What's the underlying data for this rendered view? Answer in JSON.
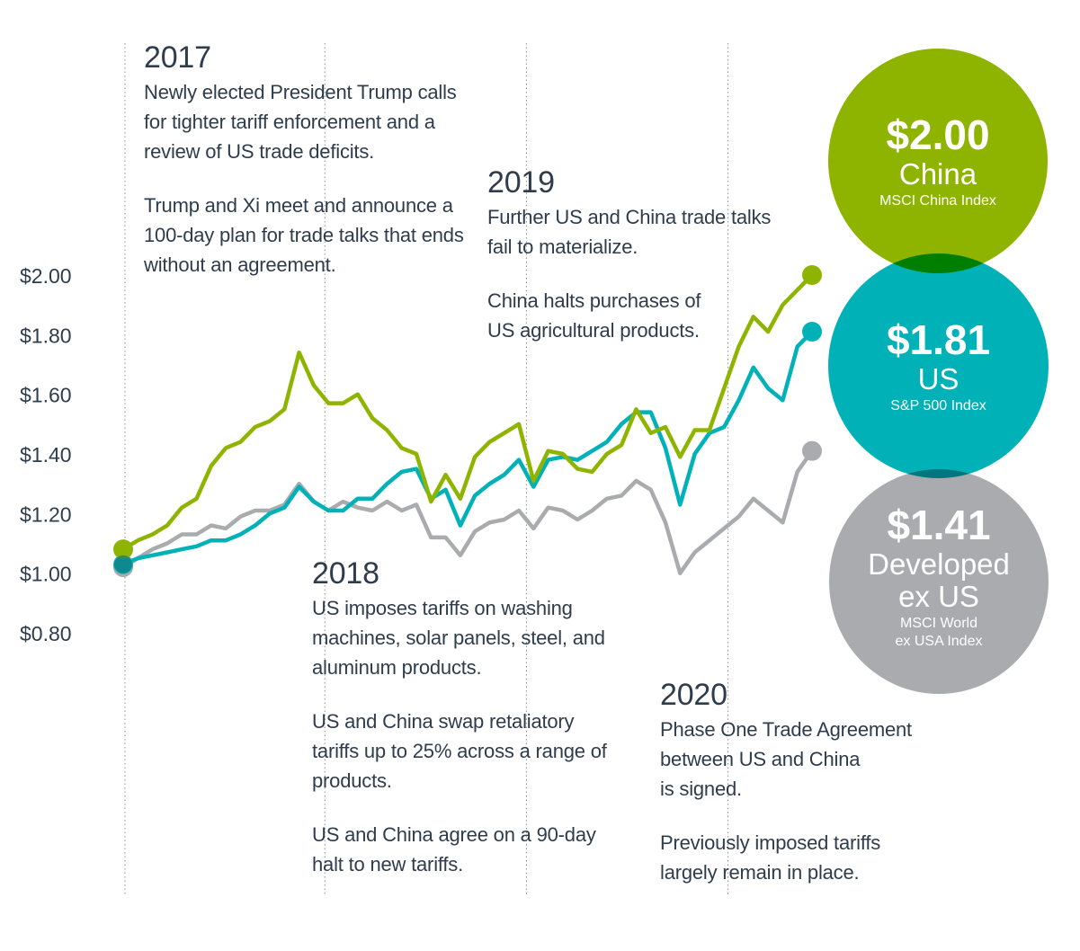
{
  "chart_data": {
    "type": "line",
    "ylim": [
      0.8,
      2.0
    ],
    "yticks": [
      "$2.00",
      "$1.80",
      "$1.60",
      "$1.40",
      "$1.20",
      "$1.00",
      "$0.80"
    ],
    "ytick_values": [
      2.0,
      1.8,
      1.6,
      1.4,
      1.2,
      1.0,
      0.8
    ],
    "x_start": "2017-01",
    "x_end": "2020-06",
    "period_markers": [
      "2017-01",
      "2018-01",
      "2019-01",
      "2020-01"
    ],
    "series": [
      {
        "name": "China",
        "color": "#8fb400",
        "values": [
          1.08,
          1.11,
          1.13,
          1.16,
          1.22,
          1.25,
          1.36,
          1.42,
          1.44,
          1.49,
          1.51,
          1.55,
          1.74,
          1.63,
          1.57,
          1.57,
          1.6,
          1.52,
          1.48,
          1.42,
          1.4,
          1.24,
          1.33,
          1.25,
          1.39,
          1.44,
          1.47,
          1.5,
          1.31,
          1.41,
          1.4,
          1.35,
          1.34,
          1.4,
          1.43,
          1.55,
          1.47,
          1.49,
          1.39,
          1.48,
          1.48,
          1.62,
          1.76,
          1.86,
          1.81,
          1.9,
          1.95,
          2.0
        ]
      },
      {
        "name": "US",
        "color": "#00b2b8",
        "values": [
          1.03,
          1.05,
          1.06,
          1.07,
          1.08,
          1.09,
          1.11,
          1.11,
          1.13,
          1.16,
          1.2,
          1.22,
          1.29,
          1.24,
          1.21,
          1.21,
          1.25,
          1.25,
          1.3,
          1.34,
          1.35,
          1.25,
          1.28,
          1.16,
          1.26,
          1.3,
          1.33,
          1.38,
          1.29,
          1.38,
          1.39,
          1.38,
          1.41,
          1.44,
          1.5,
          1.54,
          1.54,
          1.42,
          1.23,
          1.4,
          1.47,
          1.49,
          1.58,
          1.69,
          1.62,
          1.58,
          1.76,
          1.81
        ]
      },
      {
        "name": "Developed ex US",
        "color": "#a9abae",
        "values": [
          1.02,
          1.05,
          1.08,
          1.1,
          1.13,
          1.13,
          1.16,
          1.15,
          1.19,
          1.21,
          1.21,
          1.23,
          1.3,
          1.24,
          1.21,
          1.24,
          1.22,
          1.21,
          1.24,
          1.21,
          1.23,
          1.12,
          1.12,
          1.06,
          1.14,
          1.17,
          1.18,
          1.21,
          1.15,
          1.22,
          1.21,
          1.18,
          1.21,
          1.25,
          1.26,
          1.31,
          1.28,
          1.17,
          1.0,
          1.07,
          1.11,
          1.15,
          1.19,
          1.25,
          1.21,
          1.17,
          1.34,
          1.41
        ]
      }
    ]
  },
  "annotations": [
    {
      "year": "2017",
      "paragraphs": [
        [
          "Newly elected President Trump calls",
          "for tighter tariff enforcement and a",
          "review of US trade deficits."
        ],
        [
          "Trump and Xi meet and announce a",
          "100-day plan for trade talks that ends",
          "without an agreement."
        ]
      ]
    },
    {
      "year": "2018",
      "paragraphs": [
        [
          "US imposes tariffs on washing",
          "machines, solar panels, steel, and",
          "aluminum products."
        ],
        [
          "US and China swap retaliatory",
          "tariffs up to 25% across a range of",
          "products."
        ],
        [
          "US and China agree on a 90-day",
          "halt to new tariffs."
        ]
      ]
    },
    {
      "year": "2019",
      "paragraphs": [
        [
          "Further US and China trade talks",
          "fail to materialize."
        ],
        [
          "China halts purchases of",
          "US agricultural products."
        ]
      ]
    },
    {
      "year": "2020",
      "paragraphs": [
        [
          "Phase One Trade Agreement",
          "between US and China",
          "is signed."
        ],
        [
          "Previously imposed tariffs",
          "largely remain in place."
        ]
      ]
    }
  ],
  "bubbles": [
    {
      "value": "$2.00",
      "name": [
        "China"
      ],
      "index": [
        "MSCI China Index"
      ],
      "color": "#8fb400"
    },
    {
      "value": "$1.81",
      "name": [
        "US"
      ],
      "index": [
        "S&P 500 Index"
      ],
      "color": "#00b2b8"
    },
    {
      "value": "$1.41",
      "name": [
        "Developed",
        "ex US"
      ],
      "index": [
        "MSCI World",
        "ex USA Index"
      ],
      "color": "#a9abae"
    }
  ]
}
